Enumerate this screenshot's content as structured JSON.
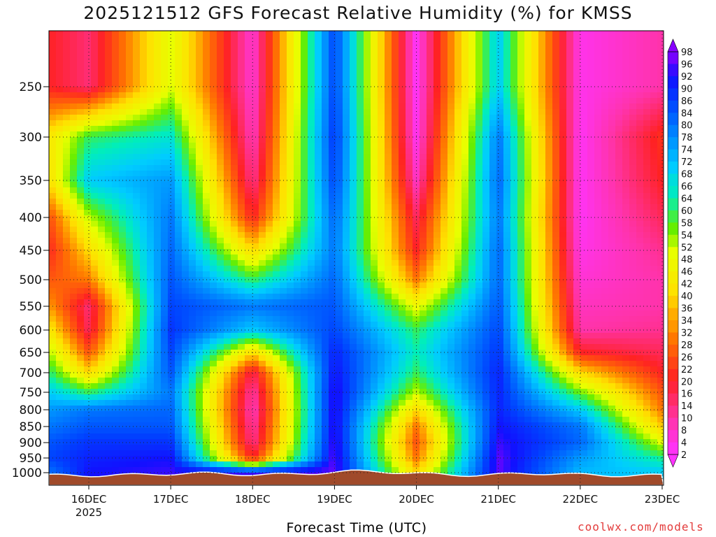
{
  "title": "2025121512 GFS Forecast Relative Humidity (%) for KMSS",
  "credit": "coolwx.com/models",
  "chart_data": {
    "type": "heatmap",
    "title": "2025121512 GFS Forecast Relative Humidity (%) for KMSS",
    "xlabel": "Forecast Time (UTC)",
    "ylabel": "",
    "grid": true,
    "y_axis": "pressure (hPa), inverted",
    "y_ticks": [
      250,
      300,
      350,
      400,
      450,
      500,
      550,
      600,
      650,
      700,
      750,
      800,
      850,
      900,
      950,
      1000
    ],
    "x_ticks": [
      "16DEC",
      "17DEC",
      "18DEC",
      "19DEC",
      "20DEC",
      "21DEC",
      "22DEC",
      "23DEC"
    ],
    "x_year_label": "2025",
    "colorbar_ticks": [
      2,
      4,
      8,
      10,
      14,
      16,
      20,
      22,
      26,
      28,
      32,
      34,
      36,
      40,
      42,
      46,
      48,
      52,
      54,
      58,
      60,
      64,
      66,
      68,
      72,
      74,
      78,
      80,
      84,
      86,
      90,
      92,
      96,
      98
    ],
    "colorbar_colors": {
      "2": "#ff33ff",
      "10": "#ff33aa",
      "20": "#ff2222",
      "30": "#ff7700",
      "40": "#ffe000",
      "50": "#e8ff00",
      "56": "#66ee00",
      "64": "#00eebb",
      "70": "#00ccff",
      "78": "#0088ff",
      "86": "#0044ff",
      "92": "#1111ff",
      "98": "#8800ff"
    },
    "terrain_color": "#a04a2a",
    "rh_by_day": [
      {
        "time": "15DEC12",
        "values": {
          "1000": 80,
          "950": 86,
          "900": 84,
          "850": 80,
          "800": 76,
          "750": 70,
          "700": 62,
          "650": 54,
          "600": 44,
          "550": 34,
          "500": 26,
          "450": 20,
          "400": 24,
          "350": 40,
          "300": 42,
          "250": 20
        }
      },
      {
        "time": "16DEC00",
        "values": {
          "1000": 92,
          "950": 90,
          "900": 88,
          "850": 84,
          "800": 80,
          "750": 60,
          "700": 40,
          "650": 26,
          "600": 16,
          "550": 14,
          "500": 30,
          "450": 40,
          "400": 52,
          "350": 70,
          "300": 60,
          "250": 14
        }
      },
      {
        "time": "17DEC00",
        "values": {
          "1000": 94,
          "950": 92,
          "900": 88,
          "850": 84,
          "800": 82,
          "750": 80,
          "700": 84,
          "650": 86,
          "600": 88,
          "550": 86,
          "500": 84,
          "450": 82,
          "400": 80,
          "350": 76,
          "300": 66,
          "250": 50
        }
      },
      {
        "time": "18DEC00",
        "values": {
          "1000": 94,
          "950": 20,
          "900": 12,
          "850": 10,
          "800": 8,
          "750": 10,
          "700": 16,
          "650": 40,
          "600": 70,
          "550": 80,
          "500": 60,
          "450": 40,
          "400": 20,
          "350": 12,
          "300": 8,
          "250": 6
        }
      },
      {
        "time": "19DEC00",
        "values": {
          "1000": 96,
          "950": 96,
          "900": 95,
          "850": 94,
          "800": 94,
          "750": 94,
          "700": 92,
          "650": 90,
          "600": 86,
          "550": 84,
          "500": 82,
          "450": 80,
          "400": 82,
          "350": 86,
          "300": 88,
          "250": 86
        }
      },
      {
        "time": "20DEC00",
        "values": {
          "1000": 40,
          "950": 30,
          "900": 26,
          "850": 30,
          "800": 40,
          "750": 52,
          "700": 60,
          "650": 64,
          "600": 60,
          "550": 48,
          "500": 30,
          "450": 20,
          "400": 16,
          "350": 8,
          "300": 4,
          "250": 3
        }
      },
      {
        "time": "21DEC00",
        "values": {
          "1000": 96,
          "950": 96,
          "900": 94,
          "850": 92,
          "800": 90,
          "750": 90,
          "700": 90,
          "650": 88,
          "600": 86,
          "550": 84,
          "500": 82,
          "450": 82,
          "400": 80,
          "350": 82,
          "300": 80,
          "250": 70
        }
      },
      {
        "time": "22DEC00",
        "values": {
          "1000": 72,
          "950": 76,
          "900": 82,
          "850": 80,
          "800": 70,
          "750": 56,
          "700": 40,
          "650": 20,
          "600": 10,
          "550": 8,
          "500": 6,
          "450": 4,
          "400": 3,
          "350": 3,
          "300": 3,
          "250": 4
        }
      },
      {
        "time": "23DEC00",
        "values": {
          "1000": 70,
          "950": 62,
          "900": 50,
          "850": 38,
          "800": 30,
          "750": 26,
          "700": 20,
          "650": 16,
          "600": 12,
          "550": 10,
          "500": 10,
          "450": 12,
          "400": 16,
          "350": 20,
          "300": 22,
          "250": 10
        }
      }
    ]
  }
}
